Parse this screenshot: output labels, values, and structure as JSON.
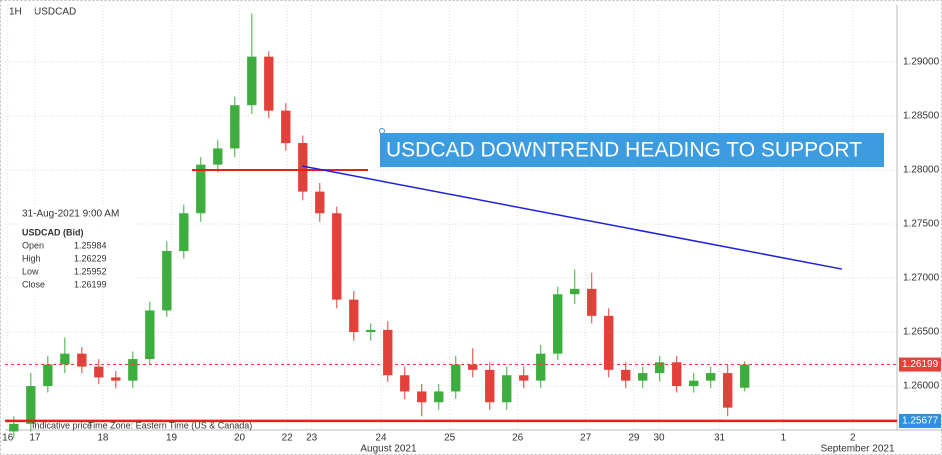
{
  "chart_data": {
    "type": "candlestick",
    "timeframe": "1H",
    "symbol": "USDCAD",
    "annotation": "USDCAD DOWNTREND HEADING TO  SUPPORT",
    "footer": "Indicative price",
    "timezone": "Time Zone: Eastern Time (US & Canada)",
    "info": {
      "datetime": "31-Aug-2021 9:00 AM",
      "title": "USDCAD (Bid)",
      "rows": [
        [
          "Open",
          "1.25984"
        ],
        [
          "High",
          "1.26229"
        ],
        [
          "Low",
          "1.25952"
        ],
        [
          "Close",
          "1.26199"
        ]
      ]
    },
    "x": [
      16.69,
      16.94,
      17.19,
      17.44,
      17.69,
      17.94,
      18.19,
      18.44,
      18.69,
      18.94,
      19.19,
      19.44,
      19.69,
      19.94,
      20.19,
      20.44,
      20.69,
      20.94,
      21.19,
      21.44,
      21.69,
      21.94,
      22.19,
      22.44,
      22.69,
      22.94,
      23.19,
      23.44,
      23.69,
      23.94,
      24.19,
      24.44,
      24.69,
      24.94,
      25.19,
      25.44,
      25.69,
      25.94,
      26.19,
      26.44,
      26.69,
      26.94,
      27.19,
      27.44
    ],
    "open": [
      1.2558,
      1.2565,
      1.26,
      1.262,
      1.263,
      1.2618,
      1.2608,
      1.2605,
      1.2625,
      1.267,
      1.2725,
      1.276,
      1.2805,
      1.282,
      1.286,
      1.2905,
      1.2855,
      1.2825,
      1.278,
      1.276,
      1.268,
      1.265,
      1.2652,
      1.261,
      1.2595,
      1.2585,
      1.2595,
      1.262,
      1.2615,
      1.2585,
      1.261,
      1.2605,
      1.263,
      1.2685,
      1.269,
      1.2665,
      1.2615,
      1.2605,
      1.2612,
      1.2622,
      1.26,
      1.2605,
      1.2612,
      1.25984
    ],
    "high": [
      1.2572,
      1.2612,
      1.2628,
      1.2645,
      1.2636,
      1.2625,
      1.2614,
      1.2632,
      1.2678,
      1.2734,
      1.2768,
      1.2812,
      1.2828,
      1.2868,
      1.2945,
      1.291,
      1.2862,
      1.2832,
      1.2788,
      1.2766,
      1.2688,
      1.2658,
      1.266,
      1.2618,
      1.2602,
      1.2602,
      1.2628,
      1.2635,
      1.2622,
      1.2618,
      1.2618,
      1.2638,
      1.2692,
      1.2708,
      1.2705,
      1.2672,
      1.2622,
      1.2618,
      1.2628,
      1.2628,
      1.2612,
      1.2618,
      1.262,
      1.26229
    ],
    "low": [
      1.2552,
      1.2558,
      1.2594,
      1.2612,
      1.2612,
      1.2602,
      1.2598,
      1.2598,
      1.262,
      1.2664,
      1.2718,
      1.2752,
      1.2798,
      1.2812,
      1.2852,
      1.2848,
      1.2818,
      1.2772,
      1.2752,
      1.2672,
      1.2642,
      1.2642,
      1.2604,
      1.2588,
      1.2572,
      1.2578,
      1.2588,
      1.2608,
      1.2578,
      1.2578,
      1.2598,
      1.2598,
      1.2624,
      1.2676,
      1.2658,
      1.2608,
      1.2598,
      1.2598,
      1.2604,
      1.2594,
      1.2594,
      1.2598,
      1.2572,
      1.25952
    ],
    "close": [
      1.2565,
      1.26,
      1.262,
      1.263,
      1.2618,
      1.2608,
      1.2605,
      1.2625,
      1.267,
      1.2725,
      1.276,
      1.2805,
      1.282,
      1.286,
      1.2905,
      1.2855,
      1.2825,
      1.278,
      1.276,
      1.268,
      1.265,
      1.2652,
      1.261,
      1.2595,
      1.2585,
      1.2595,
      1.262,
      1.2615,
      1.2585,
      1.261,
      1.2605,
      1.263,
      1.2685,
      1.269,
      1.2665,
      1.2615,
      1.2605,
      1.2612,
      1.2622,
      1.26,
      1.2605,
      1.2612,
      1.258,
      1.26199
    ],
    "up_color": "#3dae3d",
    "down_color": "#e2403b",
    "xlim": [
      16.56,
      29.68
    ],
    "ylim": [
      1.25593,
      1.29528
    ],
    "yticks": [
      {
        "value": 1.26,
        "label": "1.26000"
      },
      {
        "value": 1.265,
        "label": "1.26500"
      },
      {
        "value": 1.27,
        "label": "1.27000"
      },
      {
        "value": 1.275,
        "label": "1.27500"
      },
      {
        "value": 1.28,
        "label": "1.28000"
      },
      {
        "value": 1.285,
        "label": "1.28500"
      },
      {
        "value": 1.29,
        "label": "1.29000"
      }
    ],
    "xticks": [
      {
        "value": 16.6,
        "label": "16"
      },
      {
        "value": 17,
        "label": "17"
      },
      {
        "value": 18,
        "label": "18"
      },
      {
        "value": 19.01,
        "label": "19"
      },
      {
        "value": 20.01,
        "label": "20"
      },
      {
        "value": 20.71,
        "label": "22"
      },
      {
        "value": 21.07,
        "label": "23"
      },
      {
        "value": 22.09,
        "label": "24"
      },
      {
        "value": 23.1,
        "label": "25"
      },
      {
        "value": 24.1,
        "label": "26"
      },
      {
        "value": 25.1,
        "label": "27"
      },
      {
        "value": 25.81,
        "label": "29"
      },
      {
        "value": 26.18,
        "label": "30"
      },
      {
        "value": 27.07,
        "label": "31"
      },
      {
        "value": 28.01,
        "label": "1"
      },
      {
        "value": 29.03,
        "label": "2"
      }
    ],
    "month_labels": [
      {
        "value": 22.2,
        "label": "August 2021"
      },
      {
        "value": 29.1,
        "label": "September 2021"
      }
    ],
    "grid": true,
    "resistance": {
      "price": 1.28,
      "x": [
        19.31,
        21.9
      ],
      "color": "#e8201a"
    },
    "trendline": {
      "x": [
        20.93,
        28.87
      ],
      "y": [
        1.28037,
        1.27083
      ],
      "color": "#1f1fe0"
    },
    "support": {
      "price": 1.25677,
      "color": "#e8201a",
      "tag_color": "#2f8fe0"
    },
    "last_price": {
      "price": 1.26199,
      "color": "#e8403b"
    }
  }
}
